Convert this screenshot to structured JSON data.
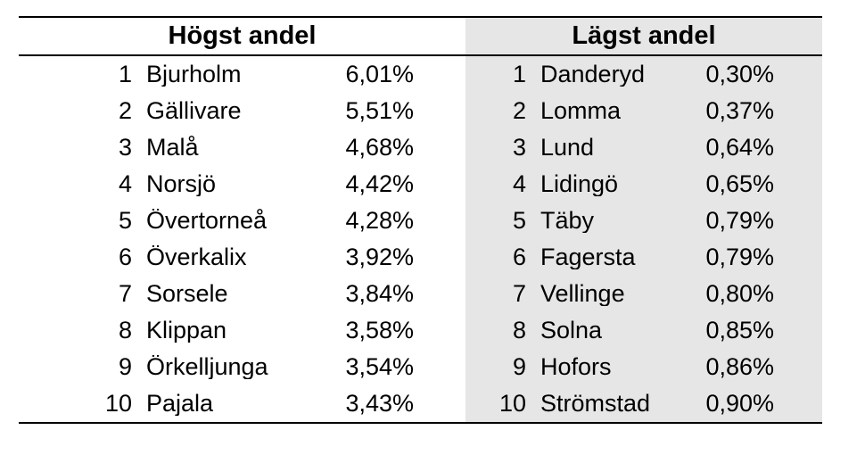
{
  "highest": {
    "title": "Högst andel",
    "rows": [
      {
        "rank": "1",
        "name": "Bjurholm",
        "value": "6,01%"
      },
      {
        "rank": "2",
        "name": "Gällivare",
        "value": "5,51%"
      },
      {
        "rank": "3",
        "name": "Malå",
        "value": "4,68%"
      },
      {
        "rank": "4",
        "name": "Norsjö",
        "value": "4,42%"
      },
      {
        "rank": "5",
        "name": "Övertorneå",
        "value": "4,28%"
      },
      {
        "rank": "6",
        "name": "Överkalix",
        "value": "3,92%"
      },
      {
        "rank": "7",
        "name": "Sorsele",
        "value": "3,84%"
      },
      {
        "rank": "8",
        "name": "Klippan",
        "value": "3,58%"
      },
      {
        "rank": "9",
        "name": "Örkelljunga",
        "value": "3,54%"
      },
      {
        "rank": "10",
        "name": "Pajala",
        "value": "3,43%"
      }
    ]
  },
  "lowest": {
    "title": "Lägst andel",
    "rows": [
      {
        "rank": "1",
        "name": "Danderyd",
        "value": "0,30%"
      },
      {
        "rank": "2",
        "name": "Lomma",
        "value": "0,37%"
      },
      {
        "rank": "3",
        "name": "Lund",
        "value": "0,64%"
      },
      {
        "rank": "4",
        "name": "Lidingö",
        "value": "0,65%"
      },
      {
        "rank": "5",
        "name": "Täby",
        "value": "0,79%"
      },
      {
        "rank": "6",
        "name": "Fagersta",
        "value": "0,79%"
      },
      {
        "rank": "7",
        "name": "Vellinge",
        "value": "0,80%"
      },
      {
        "rank": "8",
        "name": "Solna",
        "value": "0,85%"
      },
      {
        "rank": "9",
        "name": "Hofors",
        "value": "0,86%"
      },
      {
        "rank": "10",
        "name": "Strömstad",
        "value": "0,90%"
      }
    ]
  },
  "colors": {
    "panel_gray": "#e6e6e6",
    "rule_line": "#000000",
    "text": "#000000"
  }
}
